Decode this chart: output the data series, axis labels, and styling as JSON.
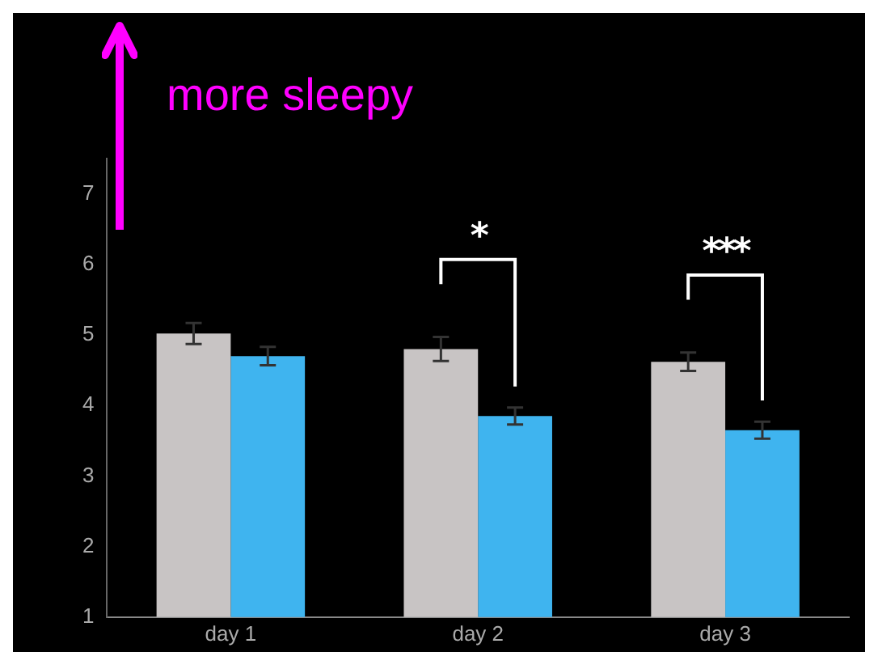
{
  "chart_data": {
    "type": "bar",
    "categories": [
      "day 1",
      "day 2",
      "day 3"
    ],
    "series": [
      {
        "color": "#c8c4c4",
        "values": [
          5.02,
          4.8,
          4.62
        ],
        "errors": [
          0.15,
          0.17,
          0.13
        ]
      },
      {
        "color": "#3fb4ef",
        "values": [
          4.7,
          3.85,
          3.65
        ],
        "errors": [
          0.13,
          0.12,
          0.12
        ]
      }
    ],
    "ylim": [
      1,
      7.5
    ],
    "yticks": [
      1,
      2,
      3,
      4,
      5,
      6,
      7
    ],
    "grid": false,
    "legend": false,
    "annotations": [
      "more sleepy",
      "*",
      "***"
    ]
  }
}
